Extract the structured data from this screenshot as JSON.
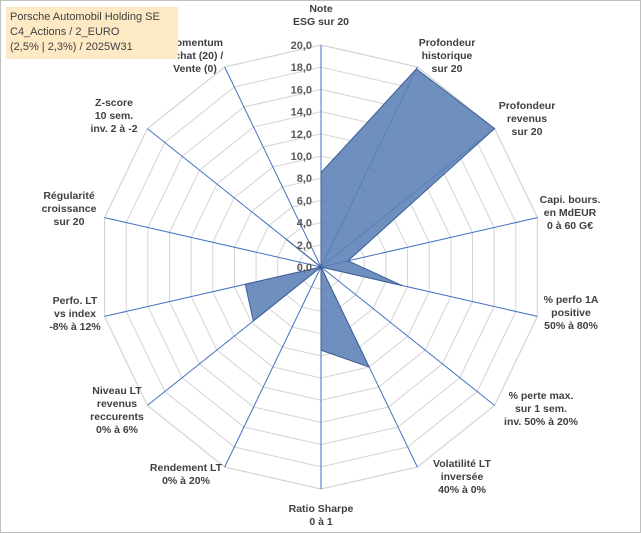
{
  "title": {
    "line1": "Porsche Automobil Holding SE",
    "line2": "C4_Actions / 2_EURO",
    "line3": "(2,5% | 2,3%) / 2025W31"
  },
  "colors": {
    "fill": "#5b80b5",
    "stroke": "#3f5f96",
    "grid": "#d4d4d4",
    "axis": "#4472c4"
  },
  "chart_data": {
    "type": "radar",
    "rmax": 20,
    "tick_step": 2,
    "tick_labels": [
      "0,0",
      "2,0",
      "4,0",
      "6,0",
      "8,0",
      "10,0",
      "12,0",
      "14,0",
      "16,0",
      "18,0",
      "20,0"
    ],
    "axes": [
      {
        "label": [
          "Note",
          "ESG sur 20"
        ]
      },
      {
        "label": [
          "Profondeur",
          "historique",
          "sur 20"
        ]
      },
      {
        "label": [
          "Profondeur",
          "revenus",
          "sur 20"
        ]
      },
      {
        "label": [
          "Capi. bours.",
          "en MdEUR",
          "0 à 60 G€"
        ]
      },
      {
        "label": [
          "% perfo 1A",
          "positive",
          "50% à 80%"
        ]
      },
      {
        "label": [
          "% perte max.",
          "sur 1 sem.",
          "inv. 50% à 20%"
        ]
      },
      {
        "label": [
          "Volatilité LT",
          "inversée",
          "40% à 0%"
        ]
      },
      {
        "label": [
          "Ratio Sharpe",
          "0 à 1"
        ]
      },
      {
        "label": [
          "Rendement LT",
          "0% à 20%"
        ]
      },
      {
        "label": [
          "Niveau LT",
          "revenus",
          "reccurents",
          "0% à 6%"
        ]
      },
      {
        "label": [
          "Perfo. LT",
          "vs index",
          "-8% à 12%"
        ]
      },
      {
        "label": [
          "Régularité",
          "croissance",
          "sur 20"
        ]
      },
      {
        "label": [
          "Z-score",
          "10 sem.",
          "inv. 2 à -2"
        ]
      },
      {
        "label": [
          "Momentum",
          "Achat (20) /",
          "Vente (0)"
        ]
      }
    ],
    "series": [
      {
        "values": [
          8.5,
          19.8,
          20.0,
          2.5,
          7.5,
          0.0,
          10.0,
          7.5,
          0.0,
          7.8,
          7.0,
          0.0,
          4.0,
          0.0
        ]
      }
    ]
  }
}
